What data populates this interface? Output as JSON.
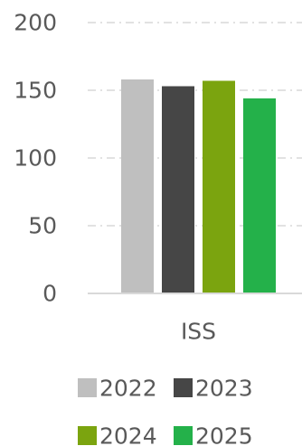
{
  "chart_data": {
    "type": "bar",
    "categories": [
      "ISS"
    ],
    "series": [
      {
        "name": "2022",
        "values": [
          158
        ],
        "color": "#bfbfbf"
      },
      {
        "name": "2023",
        "values": [
          153
        ],
        "color": "#464646"
      },
      {
        "name": "2024",
        "values": [
          157
        ],
        "color": "#7ba40f"
      },
      {
        "name": "2025",
        "values": [
          144
        ],
        "color": "#24b14a"
      }
    ],
    "ylim": [
      0,
      200
    ],
    "yticks": [
      0,
      50,
      100,
      150,
      200
    ],
    "grid": true,
    "legend_position": "bottom",
    "title": "",
    "xlabel": "",
    "ylabel": ""
  }
}
